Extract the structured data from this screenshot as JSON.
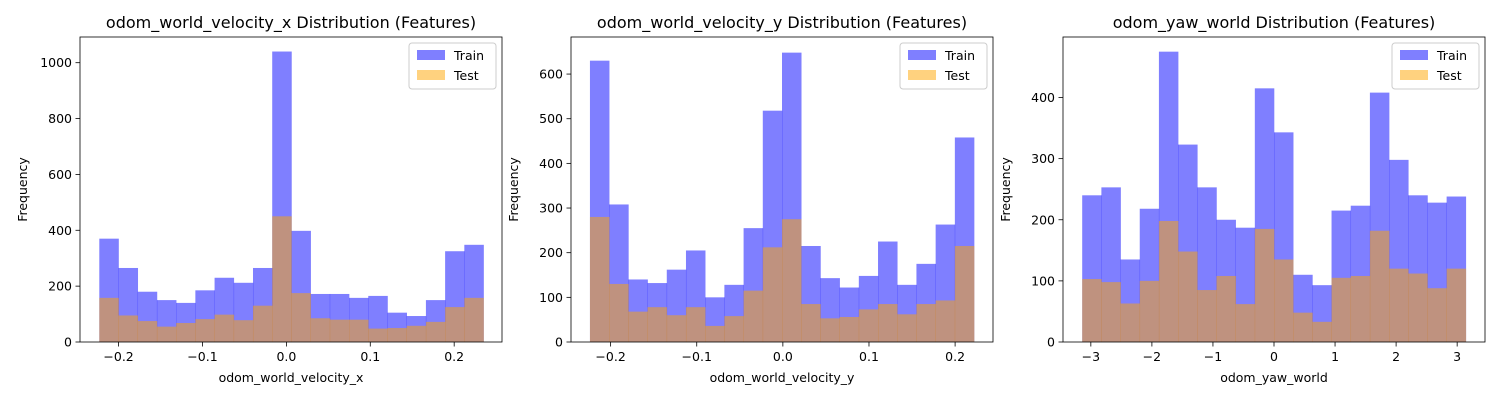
{
  "colors": {
    "train": "#0000ff",
    "test": "#ffa500",
    "train_alpha": 0.5,
    "test_alpha": 0.5
  },
  "chart_data": [
    {
      "type": "histogram",
      "title": "odom_world_velocity_x Distribution (Features)",
      "xlabel": "odom_world_velocity_x",
      "ylabel": "Frequency",
      "xlim": [
        -0.246,
        0.257
      ],
      "ylim": [
        0,
        1092
      ],
      "xticks": [
        -0.2,
        -0.1,
        0.0,
        0.1,
        0.2
      ],
      "xtick_labels": [
        "−0.2",
        "−0.1",
        "0.0",
        "0.1",
        "0.2"
      ],
      "yticks": [
        0,
        200,
        400,
        600,
        800,
        1000
      ],
      "bin_start": -0.223,
      "bin_end": 0.235,
      "legend": {
        "position": "top-right",
        "entries": [
          "Train",
          "Test"
        ]
      },
      "series": [
        {
          "name": "Train",
          "values": [
            370,
            265,
            180,
            150,
            140,
            185,
            230,
            212,
            265,
            1040,
            398,
            172,
            172,
            158,
            165,
            105,
            93,
            150,
            325,
            348
          ]
        },
        {
          "name": "Test",
          "values": [
            158,
            95,
            75,
            55,
            68,
            82,
            98,
            78,
            130,
            450,
            175,
            85,
            80,
            80,
            48,
            50,
            58,
            72,
            125,
            158
          ]
        }
      ]
    },
    {
      "type": "histogram",
      "title": "odom_world_velocity_y Distribution (Features)",
      "xlabel": "odom_world_velocity_y",
      "ylabel": "Frequency",
      "xlim": [
        -0.246,
        0.244
      ],
      "ylim": [
        0,
        683
      ],
      "xticks": [
        -0.2,
        -0.1,
        0.0,
        0.1,
        0.2
      ],
      "xtick_labels": [
        "−0.2",
        "−0.1",
        "0.0",
        "0.1",
        "0.2"
      ],
      "yticks": [
        0,
        100,
        200,
        300,
        400,
        500,
        600
      ],
      "bin_start": -0.224,
      "bin_end": 0.222,
      "legend": {
        "position": "top-right",
        "entries": [
          "Train",
          "Test"
        ]
      },
      "series": [
        {
          "name": "Train",
          "values": [
            630,
            308,
            140,
            132,
            162,
            205,
            100,
            128,
            255,
            518,
            648,
            215,
            143,
            122,
            148,
            225,
            128,
            175,
            263,
            458
          ]
        },
        {
          "name": "Test",
          "values": [
            280,
            130,
            68,
            78,
            60,
            78,
            36,
            58,
            115,
            212,
            275,
            85,
            53,
            56,
            73,
            85,
            62,
            85,
            93,
            215
          ]
        }
      ]
    },
    {
      "type": "histogram",
      "title": "odom_yaw_world Distribution (Features)",
      "xlabel": "odom_yaw_world",
      "ylabel": "Frequency",
      "xlim": [
        -3.456,
        3.456
      ],
      "ylim": [
        0,
        499
      ],
      "xticks": [
        -3,
        -2,
        -1,
        0,
        1,
        2,
        3
      ],
      "xtick_labels": [
        "−3",
        "−2",
        "−1",
        "0",
        "1",
        "2",
        "3"
      ],
      "yticks": [
        0,
        100,
        200,
        300,
        400
      ],
      "bin_start": -3.14159,
      "bin_end": 3.14159,
      "legend": {
        "position": "top-right",
        "entries": [
          "Train",
          "Test"
        ]
      },
      "series": [
        {
          "name": "Train",
          "values": [
            240,
            253,
            135,
            218,
            475,
            323,
            253,
            200,
            187,
            415,
            343,
            110,
            93,
            215,
            223,
            408,
            298,
            240,
            228,
            238
          ]
        },
        {
          "name": "Test",
          "values": [
            103,
            98,
            63,
            100,
            198,
            148,
            85,
            108,
            62,
            185,
            135,
            48,
            33,
            105,
            108,
            182,
            120,
            112,
            88,
            120
          ]
        }
      ]
    }
  ]
}
